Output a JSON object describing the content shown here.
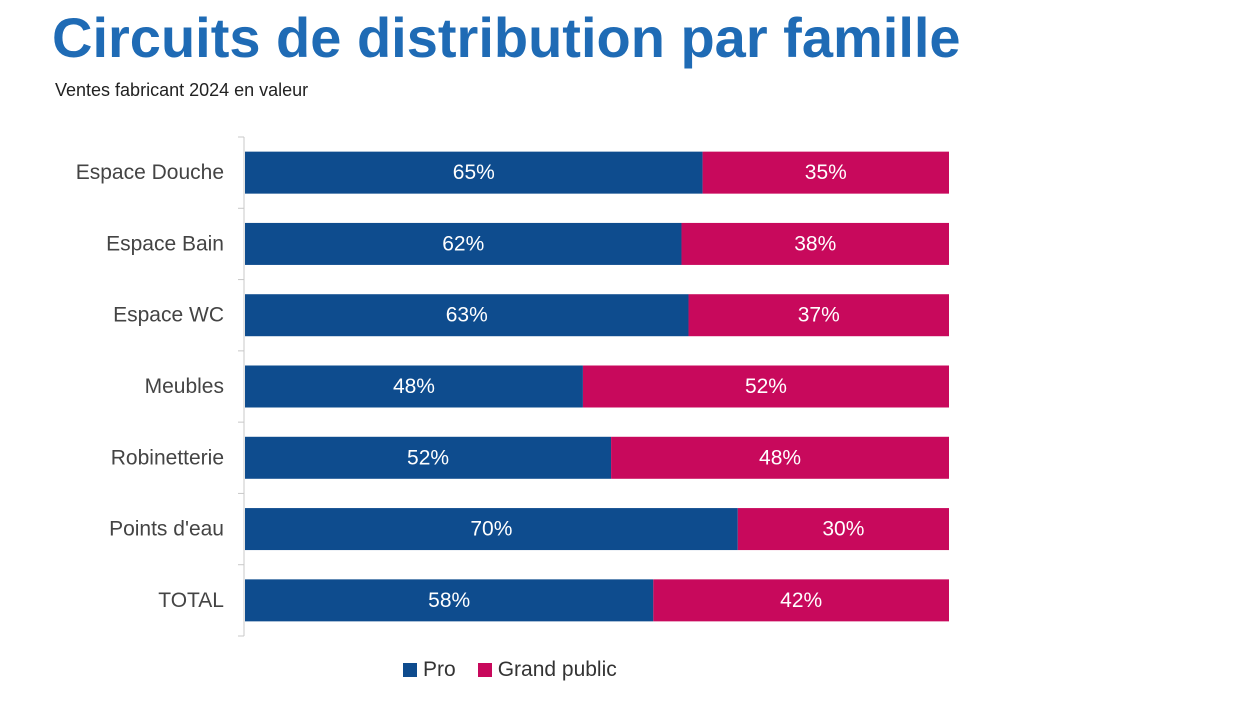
{
  "header": {
    "title": "Circuits de distribution par famille",
    "subtitle": "Ventes fabricant 2024 en valeur"
  },
  "chart_data": {
    "type": "bar",
    "orientation": "horizontal",
    "stacked": true,
    "percent_stacked": true,
    "title": "Circuits de distribution par famille",
    "subtitle": "Ventes fabricant 2024 en valeur",
    "categories": [
      "Espace Douche",
      "Espace Bain",
      "Espace WC",
      "Meubles",
      "Robinetterie",
      "Points d'eau",
      "TOTAL"
    ],
    "series": [
      {
        "name": "Pro",
        "color": "#0e4c8e",
        "values": [
          65,
          62,
          63,
          48,
          52,
          70,
          58
        ]
      },
      {
        "name": "Grand public",
        "color": "#c8095c",
        "values": [
          35,
          38,
          37,
          52,
          48,
          30,
          42
        ]
      }
    ],
    "value_suffix": "%",
    "xlim": [
      0,
      100
    ],
    "legend": "bottom",
    "grid": false
  }
}
